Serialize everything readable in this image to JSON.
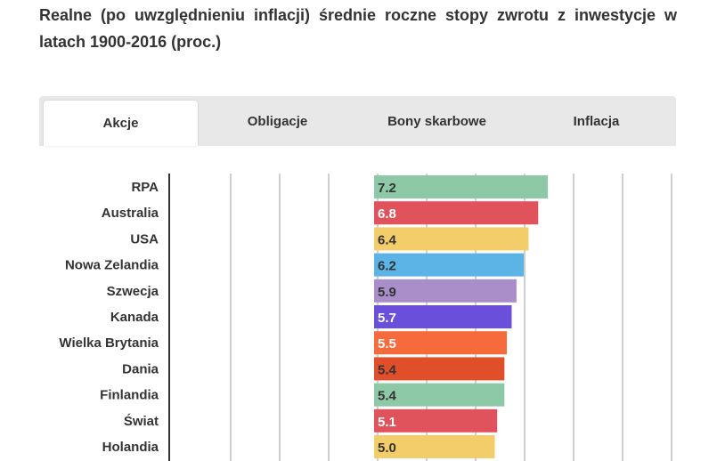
{
  "title": "Realne (po uwzględnieniu inflacji) średnie roczne stopy zwrotu z inwestycje w latach 1900-2016 (proc.)",
  "tabs": [
    {
      "label": "Akcje",
      "active": true
    },
    {
      "label": "Obligacje",
      "active": false
    },
    {
      "label": "Bony skarbowe",
      "active": false
    },
    {
      "label": "Inflacja",
      "active": false
    }
  ],
  "chart_data": {
    "type": "bar",
    "orientation": "horizontal",
    "categories": [
      "RPA",
      "Australia",
      "USA",
      "Nowa Zelandia",
      "Szwecja",
      "Kanada",
      "Wielka Brytania",
      "Dania",
      "Finlandia",
      "Świat",
      "Holandia"
    ],
    "values": [
      7.2,
      6.8,
      6.4,
      6.2,
      5.9,
      5.7,
      5.5,
      5.4,
      5.4,
      5.1,
      5.0
    ],
    "value_labels": [
      "7.2",
      "6.8",
      "6.4",
      "6.2",
      "5.9",
      "5.7",
      "5.5",
      "5.4",
      "5.4",
      "5.1",
      "5.0"
    ],
    "colors": [
      "#8dc9a6",
      "#e0535c",
      "#f3cd6a",
      "#5cb4e6",
      "#a98ec9",
      "#6a4fdb",
      "#f76a3c",
      "#e04e2a",
      "#8dc9a6",
      "#e0535c",
      "#f3cd6a"
    ],
    "label_colors": [
      "#333333",
      "#ffffff",
      "#333333",
      "#333333",
      "#333333",
      "#ffffff",
      "#ffffff",
      "#333333",
      "#333333",
      "#ffffff",
      "#333333"
    ],
    "grid": true,
    "bar_start_value": 0
  }
}
